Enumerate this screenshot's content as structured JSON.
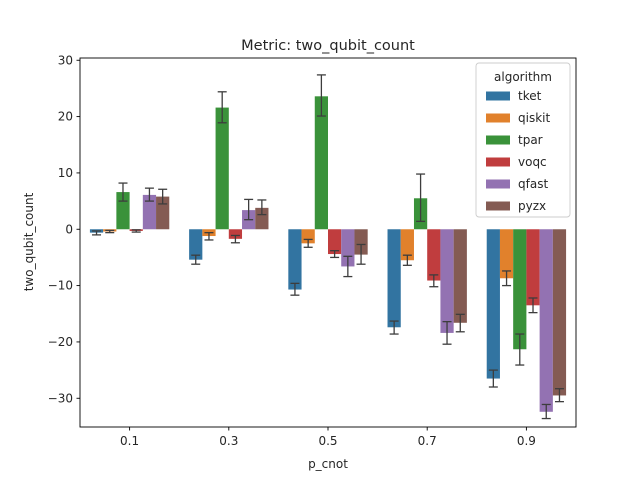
{
  "chart_data": {
    "type": "bar",
    "title": "Metric: two_qubit_count",
    "xlabel": "p_cnot",
    "ylabel": "two_qubit_count",
    "categories": [
      "0.1",
      "0.3",
      "0.5",
      "0.7",
      "0.9"
    ],
    "ylim": [
      -35.1,
      30.4
    ],
    "yticks": [
      -30,
      -20,
      -10,
      0,
      10,
      20,
      30
    ],
    "ytick_labels": [
      "−30",
      "−20",
      "−10",
      "0",
      "10",
      "20",
      "30"
    ],
    "grid": false,
    "legend": {
      "title": "algorithm",
      "placement": "top-right"
    },
    "series": [
      {
        "name": "tket",
        "color": "#3274a1",
        "values": [
          -0.6,
          -5.4,
          -10.7,
          -17.4,
          -26.5
        ],
        "err_low": [
          -1.0,
          -6.2,
          -11.7,
          -18.6,
          -28.0
        ],
        "err_high": [
          -0.3,
          -4.6,
          -9.6,
          -16.3,
          -25.0
        ]
      },
      {
        "name": "qiskit",
        "color": "#e1812c",
        "values": [
          -0.4,
          -1.2,
          -2.5,
          -5.5,
          -8.7
        ],
        "err_low": [
          -0.6,
          -1.9,
          -3.2,
          -6.4,
          -10.0
        ],
        "err_high": [
          -0.2,
          -0.6,
          -1.8,
          -4.6,
          -7.4
        ]
      },
      {
        "name": "tpar",
        "color": "#3a923a",
        "values": [
          6.6,
          21.6,
          23.6,
          5.5,
          -21.3
        ],
        "err_low": [
          5.0,
          18.9,
          20.1,
          1.4,
          -24.1
        ],
        "err_high": [
          8.2,
          24.4,
          27.4,
          9.8,
          -18.6
        ]
      },
      {
        "name": "voqc",
        "color": "#c03d3e",
        "values": [
          -0.3,
          -1.7,
          -4.4,
          -9.1,
          -13.5
        ],
        "err_low": [
          -0.5,
          -2.4,
          -5.0,
          -10.2,
          -14.8
        ],
        "err_high": [
          -0.1,
          -1.1,
          -3.8,
          -8.1,
          -12.2
        ]
      },
      {
        "name": "qfast",
        "color": "#9372b2",
        "values": [
          6.1,
          3.4,
          -6.6,
          -18.4,
          -32.4
        ],
        "err_low": [
          5.0,
          1.7,
          -8.4,
          -20.4,
          -33.6
        ],
        "err_high": [
          7.3,
          5.3,
          -4.8,
          -16.4,
          -31.1
        ]
      },
      {
        "name": "pyzx",
        "color": "#845b53",
        "values": [
          5.8,
          3.8,
          -4.5,
          -16.6,
          -29.5
        ],
        "err_low": [
          4.5,
          2.6,
          -6.2,
          -18.2,
          -30.6
        ],
        "err_high": [
          7.1,
          5.2,
          -2.7,
          -15.1,
          -28.3
        ]
      }
    ]
  }
}
